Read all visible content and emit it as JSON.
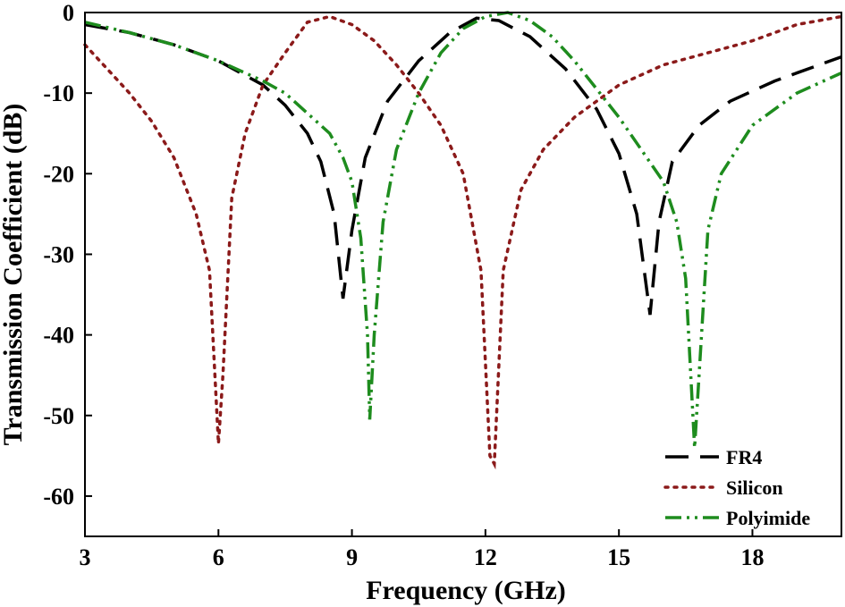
{
  "chart_data": {
    "type": "line",
    "xlabel": "Frequency (GHz)",
    "ylabel": "Transmission Coefficient (dB)",
    "xlim": [
      3,
      20
    ],
    "ylim": [
      -65,
      0
    ],
    "xticks": [
      3,
      6,
      9,
      12,
      15,
      18
    ],
    "yticks": [
      0,
      -10,
      -20,
      -30,
      -40,
      -50,
      -60
    ],
    "grid": false,
    "legend_position": "bottom-right",
    "series": [
      {
        "name": "FR4",
        "color": "#000000",
        "style": "dashed",
        "x": [
          3,
          4,
          5,
          6,
          7,
          7.5,
          8,
          8.3,
          8.6,
          8.8,
          9.0,
          9.3,
          9.8,
          10.5,
          11.2,
          11.8,
          12.3,
          13,
          13.8,
          14.5,
          15.0,
          15.4,
          15.7,
          15.9,
          16.2,
          16.8,
          17.5,
          18.5,
          19.5,
          20
        ],
        "y": [
          -1.5,
          -2.5,
          -4,
          -6,
          -9,
          -11.5,
          -15,
          -18.5,
          -25,
          -35.5,
          -27,
          -18,
          -11,
          -6,
          -2.5,
          -0.7,
          -1,
          -3,
          -7,
          -12,
          -17.5,
          -25,
          -37.5,
          -26,
          -18.5,
          -14,
          -11,
          -8.5,
          -6.5,
          -5.5
        ]
      },
      {
        "name": "Silicon",
        "color": "#8B1A1A",
        "style": "dotted",
        "x": [
          3,
          3.5,
          4,
          4.5,
          5,
          5.5,
          5.8,
          6.0,
          6.1,
          6.3,
          6.6,
          7,
          7.5,
          8,
          8.5,
          9,
          9.5,
          10,
          10.5,
          11,
          11.5,
          11.9,
          12.1,
          12.2,
          12.4,
          12.8,
          13.3,
          14,
          15,
          16,
          17,
          18,
          19,
          20
        ],
        "y": [
          -4,
          -7,
          -10,
          -13.5,
          -18,
          -25,
          -32,
          -53.5,
          -45,
          -23,
          -15,
          -9,
          -5,
          -1.2,
          -0.5,
          -1.5,
          -3.5,
          -6.5,
          -10,
          -14,
          -20,
          -32,
          -55,
          -56,
          -32,
          -22,
          -17,
          -13,
          -9,
          -6.5,
          -5,
          -3.5,
          -1.5,
          -0.5
        ]
      },
      {
        "name": "Polyimide",
        "color": "#1E8C1E",
        "style": "dash-dot-dot",
        "x": [
          3,
          4,
          5,
          6,
          7,
          7.5,
          8,
          8.5,
          8.8,
          9.0,
          9.2,
          9.35,
          9.4,
          9.5,
          9.7,
          10,
          10.5,
          11,
          11.5,
          12,
          12.5,
          13,
          13.5,
          14,
          14.5,
          15,
          15.5,
          16.0,
          16.3,
          16.5,
          16.7,
          16.8,
          17.0,
          17.3,
          18,
          19,
          20
        ],
        "y": [
          -1.2,
          -2.5,
          -4,
          -6,
          -8.5,
          -10,
          -12.5,
          -15,
          -18,
          -21,
          -28,
          -40,
          -50.5,
          -40,
          -26,
          -17,
          -10,
          -5,
          -2,
          -0.5,
          0,
          -1,
          -3,
          -6,
          -9.5,
          -13,
          -17,
          -21,
          -26,
          -33,
          -54,
          -45,
          -27,
          -20,
          -14,
          -10,
          -7.5
        ]
      }
    ]
  }
}
